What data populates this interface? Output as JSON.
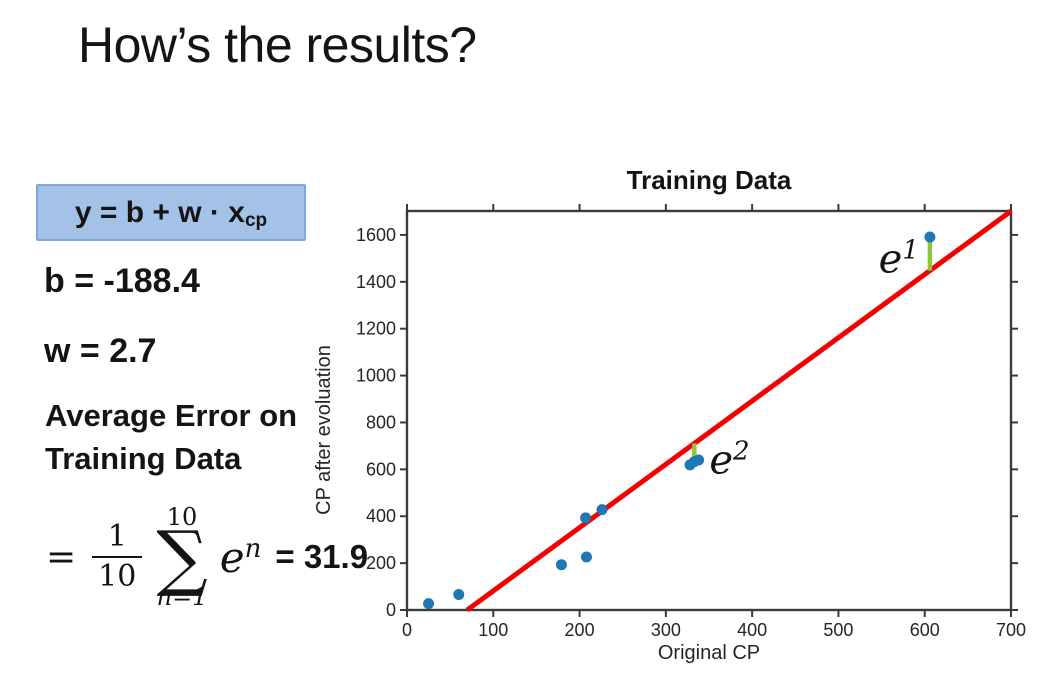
{
  "slide": {
    "title": "How’s the results?",
    "model_formula": {
      "main": "y = b + w · x",
      "subscript": "cp"
    },
    "parameters": {
      "b": "b = -188.4",
      "w": "w = 2.7"
    },
    "average_error_label": {
      "line1": "Average Error on",
      "line2": "Training Data"
    },
    "error_formula": {
      "equals": "=",
      "fraction_numerator": "1",
      "fraction_denominator": "10",
      "sum_upper_limit": "10",
      "sum_symbol": "∑",
      "sum_lower_limit": "n=1",
      "term_base": "e",
      "term_exponent": "n",
      "result": "= 31.9"
    }
  },
  "chart_data": {
    "type": "scatter",
    "title": "Training Data",
    "xlabel": "Original CP",
    "ylabel": "CP after evoluation",
    "xlim": [
      0,
      700
    ],
    "ylim": [
      0,
      1702
    ],
    "x_ticks": [
      0,
      100,
      200,
      300,
      400,
      500,
      600,
      700
    ],
    "y_ticks": [
      0,
      200,
      400,
      600,
      800,
      1000,
      1200,
      1400,
      1600
    ],
    "grid": false,
    "legend": null,
    "points": [
      [
        338,
        640
      ],
      [
        333,
        633
      ],
      [
        328,
        619
      ],
      [
        207,
        393
      ],
      [
        226,
        428
      ],
      [
        25,
        27
      ],
      [
        179,
        193
      ],
      [
        60,
        66
      ],
      [
        208,
        226
      ],
      [
        606,
        1591
      ]
    ],
    "regression_line": {
      "b": -188.4,
      "w": 2.7,
      "color": "#f40000"
    },
    "error_bars": [
      {
        "x": 606,
        "y": 1591,
        "label_base": "e",
        "label_exponent": "1",
        "label_side": "left"
      },
      {
        "x": 333,
        "y": 633,
        "label_base": "e",
        "label_exponent": "2",
        "label_side": "right"
      }
    ],
    "colors": {
      "point": "#1f77b4",
      "error_bar": "#8ec63f",
      "axis": "#3b3b3b",
      "tick_text": "#262626"
    }
  }
}
